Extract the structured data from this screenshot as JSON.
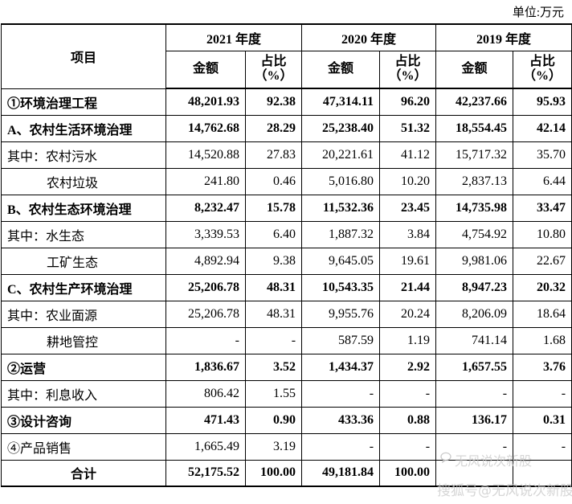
{
  "unit_label": "单位:万元",
  "header": {
    "item_label": "项目",
    "years": [
      "2021 年度",
      "2020 年度",
      "2019 年度"
    ],
    "amount_label": "金额",
    "ratio_label": "占比",
    "ratio_unit": "（%）"
  },
  "rows": [
    {
      "label": "①环境治理工程",
      "bold": true,
      "indent": false,
      "v": [
        "48,201.93",
        "92.38",
        "47,314.11",
        "96.20",
        "42,237.66",
        "95.93"
      ]
    },
    {
      "label": "A、农村生活环境治理",
      "bold": true,
      "indent": false,
      "v": [
        "14,762.68",
        "28.29",
        "25,238.40",
        "51.32",
        "18,554.45",
        "42.14"
      ]
    },
    {
      "label": "其中：农村污水",
      "bold": false,
      "indent": false,
      "v": [
        "14,520.88",
        "27.83",
        "20,221.61",
        "41.12",
        "15,717.32",
        "35.70"
      ]
    },
    {
      "label": "农村垃圾",
      "bold": false,
      "indent": true,
      "v": [
        "241.80",
        "0.46",
        "5,016.80",
        "10.20",
        "2,837.13",
        "6.44"
      ]
    },
    {
      "label": "B、农村生态环境治理",
      "bold": true,
      "indent": false,
      "v": [
        "8,232.47",
        "15.78",
        "11,532.36",
        "23.45",
        "14,735.98",
        "33.47"
      ]
    },
    {
      "label": "其中：水生态",
      "bold": false,
      "indent": false,
      "v": [
        "3,339.53",
        "6.40",
        "1,887.32",
        "3.84",
        "4,754.92",
        "10.80"
      ]
    },
    {
      "label": "工矿生态",
      "bold": false,
      "indent": true,
      "v": [
        "4,892.94",
        "9.38",
        "9,645.05",
        "19.61",
        "9,981.06",
        "22.67"
      ]
    },
    {
      "label": "C、农村生产环境治理",
      "bold": true,
      "indent": false,
      "v": [
        "25,206.78",
        "48.31",
        "10,543.35",
        "21.44",
        "8,947.23",
        "20.32"
      ]
    },
    {
      "label": "其中：农业面源",
      "bold": false,
      "indent": false,
      "v": [
        "25,206.78",
        "48.31",
        "9,955.76",
        "20.24",
        "8,206.09",
        "18.64"
      ]
    },
    {
      "label": "耕地管控",
      "bold": false,
      "indent": true,
      "v": [
        "-",
        "-",
        "587.59",
        "1.19",
        "741.14",
        "1.68"
      ]
    },
    {
      "label": "②运营",
      "bold": true,
      "indent": false,
      "v": [
        "1,836.67",
        "3.52",
        "1,434.37",
        "2.92",
        "1,657.55",
        "3.76"
      ]
    },
    {
      "label": "其中：利息收入",
      "bold": false,
      "indent": false,
      "v": [
        "806.42",
        "1.55",
        "-",
        "-",
        "-",
        "-"
      ]
    },
    {
      "label": "③设计咨询",
      "bold": true,
      "indent": false,
      "v": [
        "471.43",
        "0.90",
        "433.36",
        "0.88",
        "136.17",
        "0.31"
      ]
    },
    {
      "label": "④产品销售",
      "bold": false,
      "indent": false,
      "v": [
        "1,665.49",
        "3.19",
        "-",
        "-",
        "-",
        "-"
      ]
    },
    {
      "label": "合计",
      "bold": true,
      "indent": false,
      "center": true,
      "v": [
        "52,175.52",
        "100.00",
        "49,181.84",
        "100.00",
        "",
        ""
      ]
    }
  ],
  "watermark": {
    "line1": "无风说次新股",
    "line2": "搜狐号@无风说次新股",
    "icon": "chat-bubble-icon"
  }
}
